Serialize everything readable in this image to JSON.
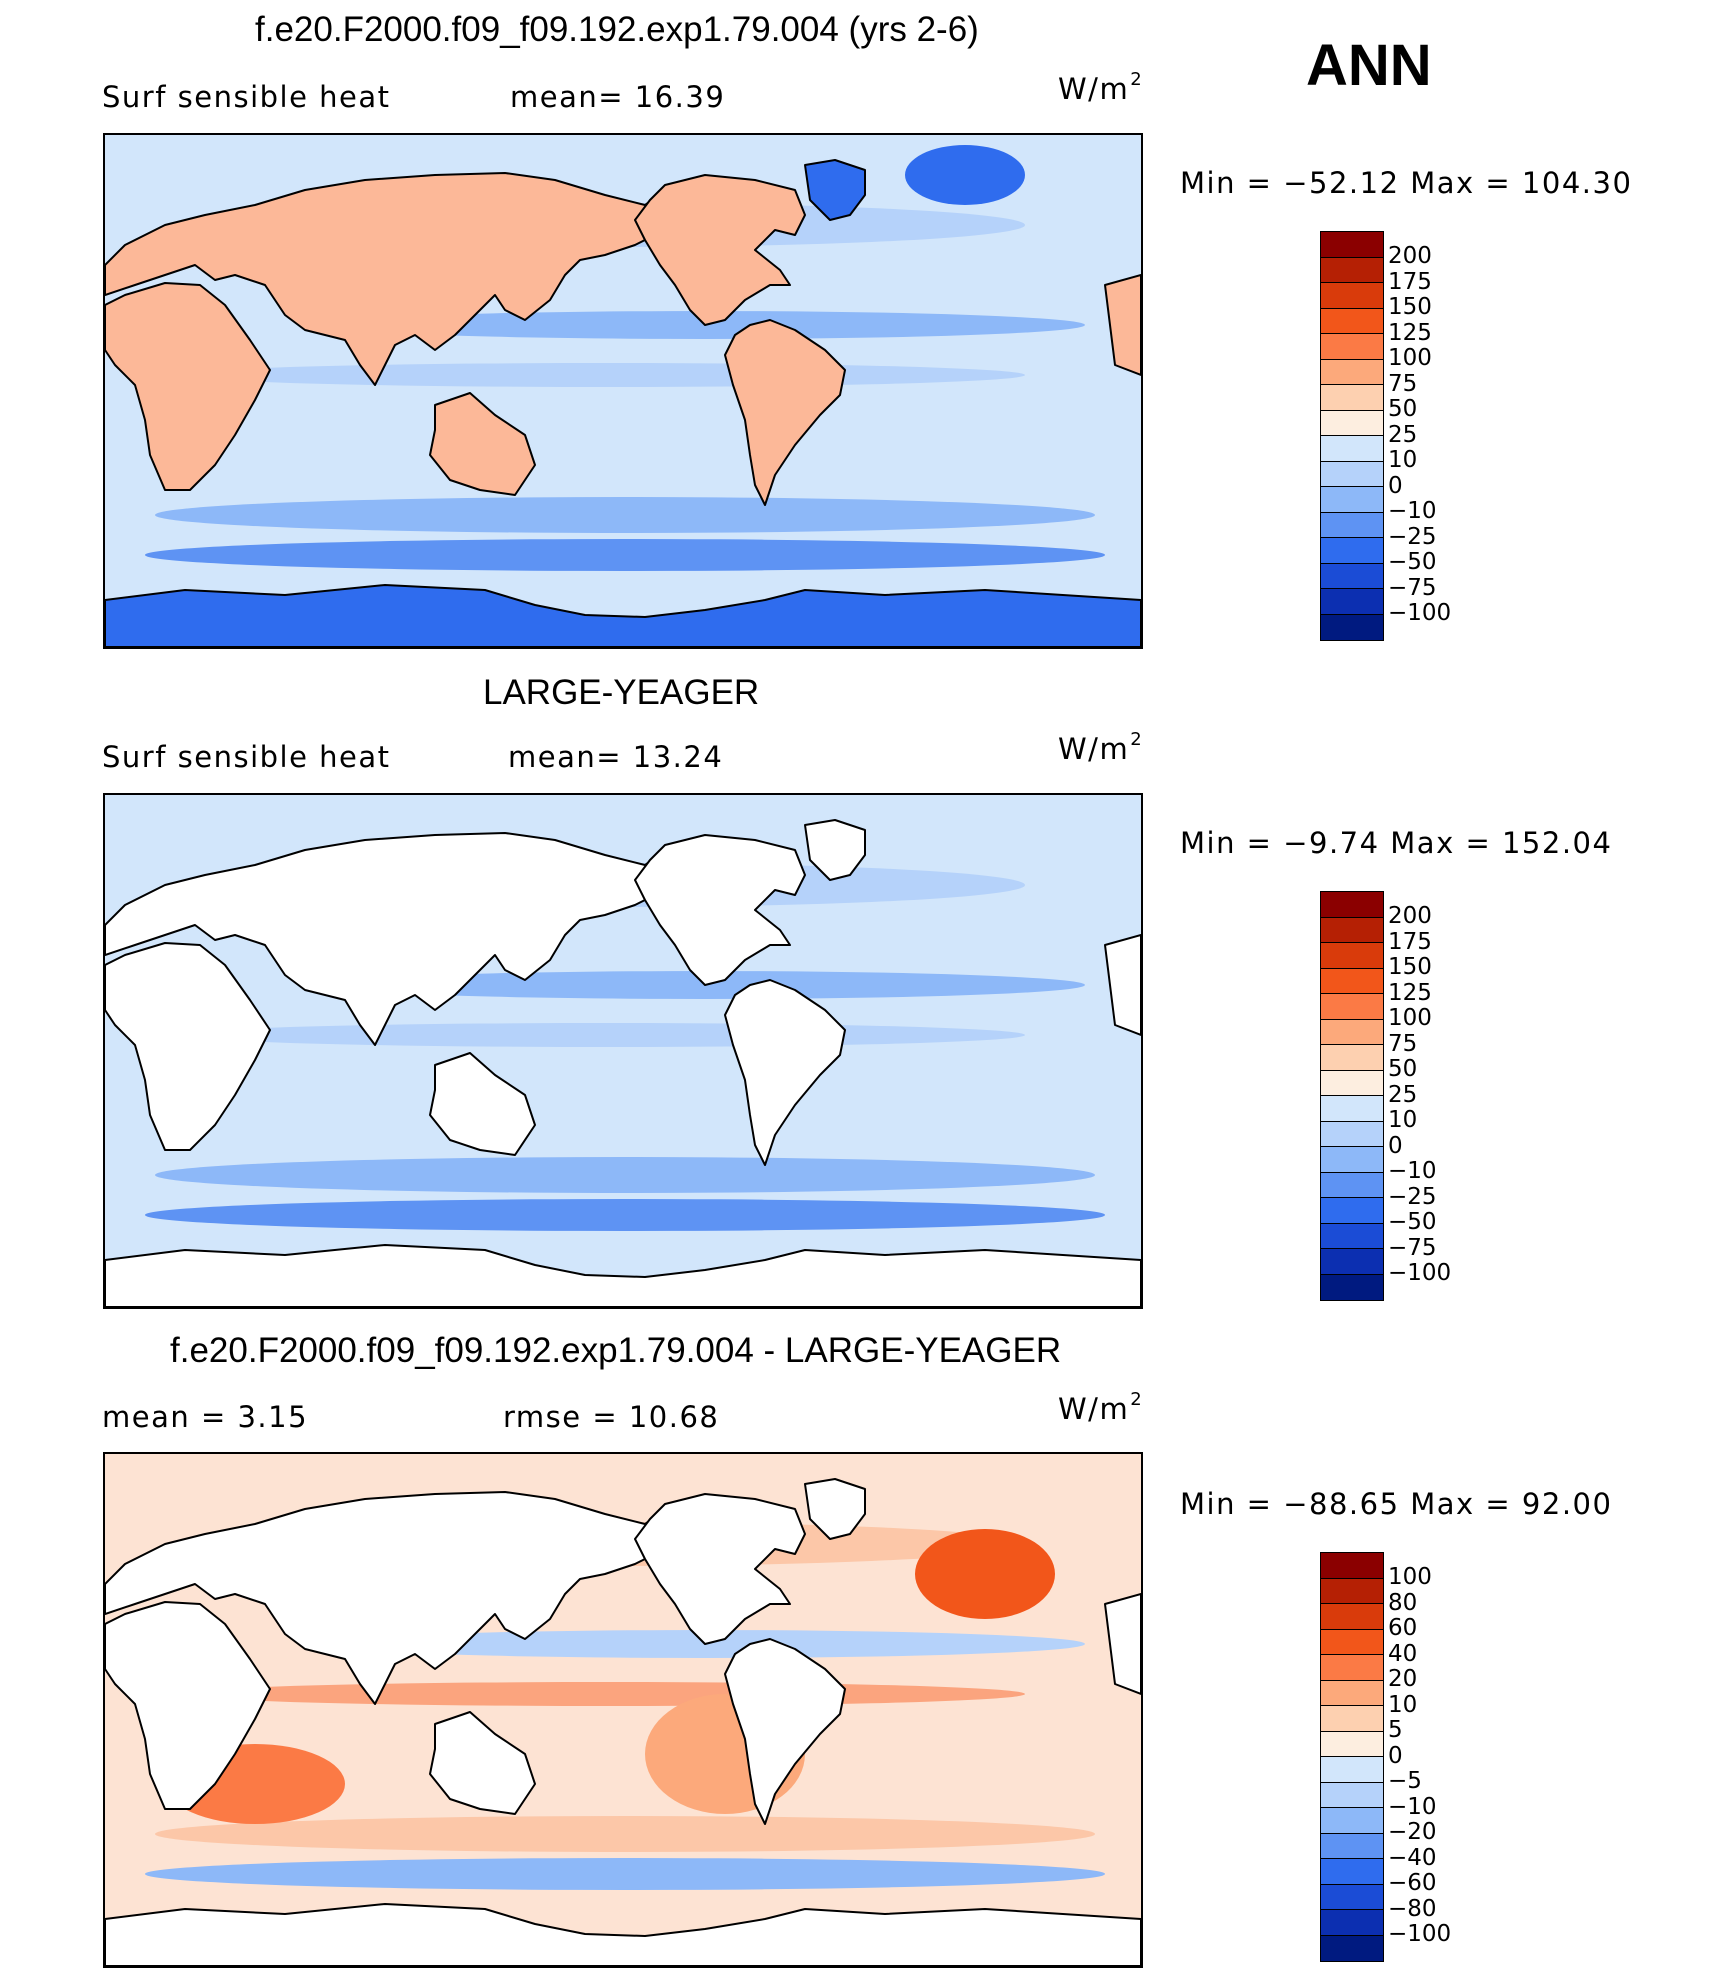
{
  "season": "ANN",
  "units": {
    "base": "W/m",
    "exp": "2"
  },
  "panels": [
    {
      "title": "f.e20.F2000.f09_f09.192.exp1.79.004 (yrs 2-6)",
      "left_label": "Surf  sensible  heat",
      "mid_label": "mean=   16.39",
      "minmax": "Min  =  −52.12  Max  =  104.30",
      "levels": [
        "200",
        "175",
        "150",
        "125",
        "100",
        "75",
        "50",
        "25",
        "10",
        "0",
        "−10",
        "−25",
        "−50",
        "−75",
        "−100"
      ],
      "colors": [
        "#8b0000",
        "#b52004",
        "#d93b0b",
        "#f2561a",
        "#fb7a45",
        "#fca97b",
        "#fdd0b0",
        "#fdeee0",
        "#d2e6fb",
        "#b5d2fa",
        "#8db8f8",
        "#5e93f3",
        "#2f6cee",
        "#1b4cd6",
        "#0c2fb1",
        "#001a80"
      ],
      "ocean_fill": "#d2e6fb",
      "land_fill": "#fcb898",
      "antarctic_fill": "#2f6cee"
    },
    {
      "title": "LARGE-YEAGER",
      "left_label": "Surf  sensible  heat",
      "mid_label": "mean=   13.24",
      "minmax": "Min  =    −9.74  Max  =  152.04",
      "levels": [
        "200",
        "175",
        "150",
        "125",
        "100",
        "75",
        "50",
        "25",
        "10",
        "0",
        "−10",
        "−25",
        "−50",
        "−75",
        "−100"
      ],
      "colors": [
        "#8b0000",
        "#b52004",
        "#d93b0b",
        "#f2561a",
        "#fb7a45",
        "#fca97b",
        "#fdd0b0",
        "#fdeee0",
        "#d2e6fb",
        "#b5d2fa",
        "#8db8f8",
        "#5e93f3",
        "#2f6cee",
        "#1b4cd6",
        "#0c2fb1",
        "#001a80"
      ],
      "ocean_fill": "#d2e6fb",
      "land_fill": "#ffffff",
      "antarctic_fill": "#ffffff"
    },
    {
      "title": "f.e20.F2000.f09_f09.192.exp1.79.004 - LARGE-YEAGER",
      "left_label": "mean  =      3.15",
      "mid_label": "rmse  =     10.68",
      "minmax": "Min  =  −88.65  Max  =    92.00",
      "levels": [
        "100",
        "80",
        "60",
        "40",
        "20",
        "10",
        "5",
        "0",
        "−5",
        "−10",
        "−20",
        "−40",
        "−60",
        "−80",
        "−100"
      ],
      "colors": [
        "#8b0000",
        "#b52004",
        "#d93b0b",
        "#f2561a",
        "#fb7a45",
        "#fca97b",
        "#fdd0b0",
        "#fdeee0",
        "#d2e6fb",
        "#b5d2fa",
        "#8db8f8",
        "#5e93f3",
        "#2f6cee",
        "#1b4cd6",
        "#0c2fb1",
        "#001a80"
      ],
      "ocean_fill": "#fde3d3",
      "land_fill": "#ffffff",
      "antarctic_fill": "#ffffff"
    }
  ]
}
